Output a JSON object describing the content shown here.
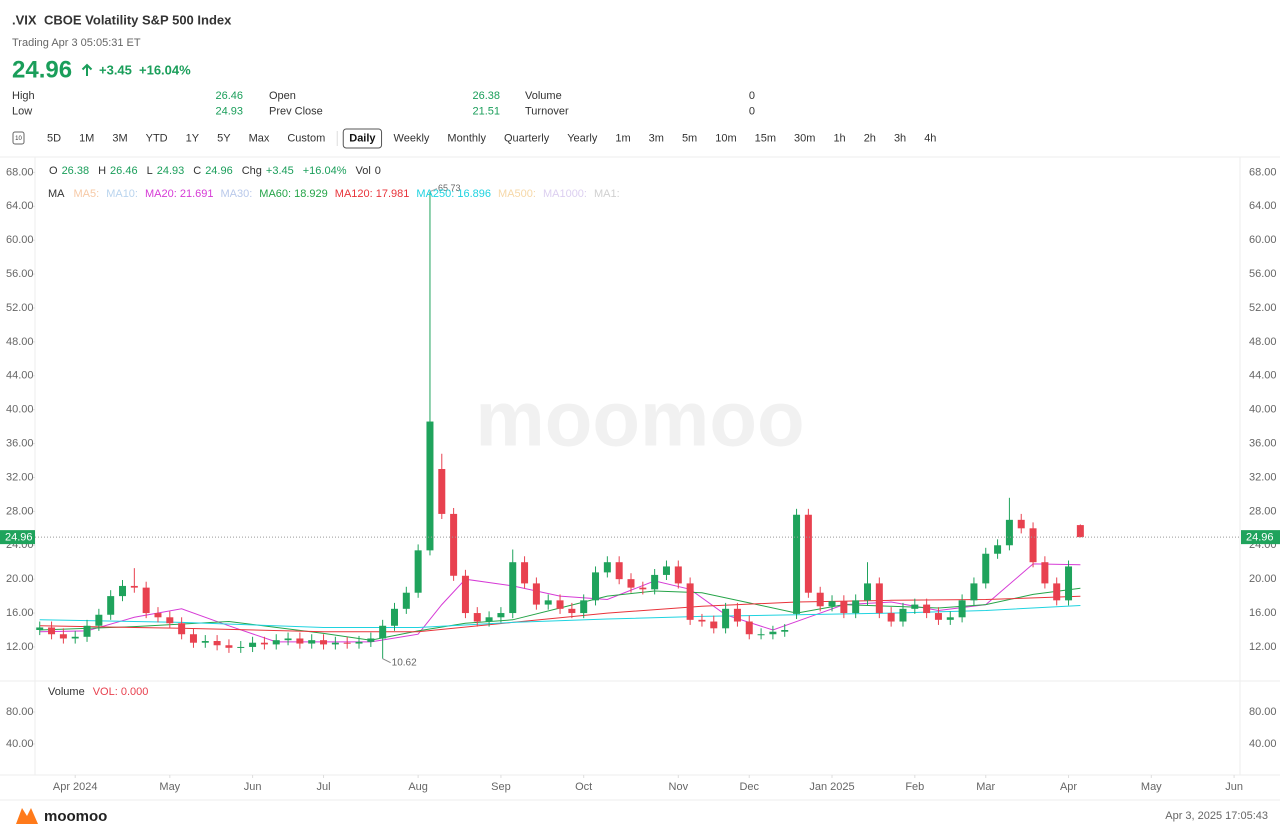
{
  "header": {
    "symbol": ".VIX",
    "name": "CBOE Volatility S&P 500 Index",
    "status": "Trading Apr 3 05:05:31 ET",
    "price": "24.96",
    "change": "+3.45",
    "change_pct": "+16.04%",
    "stats": [
      [
        {
          "label": "High",
          "value": "26.46"
        },
        {
          "label": "Low",
          "value": "24.93"
        }
      ],
      [
        {
          "label": "Open",
          "value": "26.38"
        },
        {
          "label": "Prev Close",
          "value": "21.51"
        }
      ],
      [
        {
          "label": "Volume",
          "value": "0"
        },
        {
          "label": "Turnover",
          "value": "0"
        }
      ]
    ]
  },
  "toolbar": {
    "icon": "10",
    "ranges": [
      "5D",
      "1M",
      "3M",
      "YTD",
      "1Y",
      "5Y",
      "Max",
      "Custom"
    ],
    "periods": [
      "Daily",
      "Weekly",
      "Monthly",
      "Quarterly",
      "Yearly",
      "1m",
      "3m",
      "5m",
      "10m",
      "15m",
      "30m",
      "1h",
      "2h",
      "3h",
      "4h"
    ],
    "active_period": 0
  },
  "chart_data": {
    "type": "candlestick",
    "watermark": "moomoo",
    "info": [
      {
        "label": "O",
        "value": "26.38"
      },
      {
        "label": "H",
        "value": "26.46"
      },
      {
        "label": "L",
        "value": "24.93"
      },
      {
        "label": "C",
        "value": "24.96"
      },
      {
        "label": "Chg",
        "value": "+3.45"
      },
      {
        "value": "+16.04%"
      },
      {
        "label": "Vol",
        "value": "0"
      }
    ],
    "ma_title": "MA",
    "ma_legend": [
      {
        "text": "MA5:",
        "color": "#f6c9a6"
      },
      {
        "text": "MA10:",
        "color": "#b9d4ee"
      },
      {
        "text": "MA20: 21.691",
        "color": "#d63bd6"
      },
      {
        "text": "MA30:",
        "color": "#b8c8ea"
      },
      {
        "text": "MA60: 18.929",
        "color": "#25a448"
      },
      {
        "text": "MA120: 17.981",
        "color": "#e8333a"
      },
      {
        "text": "MA250: 16.896",
        "color": "#1fd3e0"
      },
      {
        "text": "MA500:",
        "color": "#f6d8a8"
      },
      {
        "text": "MA1000:",
        "color": "#dccff0"
      },
      {
        "text": "MA1:",
        "color": "#d0d0d0"
      }
    ],
    "up_color": "#1fa35c",
    "down_color": "#e8414f",
    "candles": {
      "open": [
        14.0,
        14.3,
        13.5,
        13.0,
        13.2,
        14.5,
        15.8,
        18.0,
        19.2,
        19.0,
        16.0,
        15.5,
        14.8,
        13.5,
        12.5,
        12.7,
        12.2,
        11.9,
        12.0,
        12.5,
        12.3,
        12.8,
        13.0,
        12.4,
        12.8,
        12.3,
        12.5,
        12.4,
        12.6,
        13.0,
        14.5,
        16.5,
        18.4,
        23.4,
        33.0,
        27.7,
        20.4,
        16.0,
        15.0,
        15.5,
        16.0,
        22.0,
        19.5,
        17.0,
        17.5,
        16.5,
        16.0,
        17.5,
        20.8,
        22.0,
        20.0,
        19.0,
        18.8,
        20.5,
        21.5,
        19.5,
        15.2,
        15.0,
        14.2,
        16.5,
        15.0,
        13.5,
        13.5,
        13.8,
        15.9,
        27.6,
        18.4,
        16.8,
        17.4,
        16.0,
        17.5,
        19.5,
        16.0,
        15.0,
        16.5,
        17.0,
        16.0,
        15.2,
        15.5,
        17.5,
        19.5,
        23.0,
        24.0,
        27.0,
        26.0,
        22.0,
        19.5,
        17.5,
        26.38
      ],
      "high": [
        15.0,
        15.0,
        14.2,
        13.9,
        15.2,
        16.5,
        18.7,
        19.9,
        21.3,
        19.7,
        16.7,
        16.2,
        15.5,
        14.2,
        13.4,
        13.4,
        12.9,
        12.7,
        13.2,
        13.2,
        13.5,
        13.7,
        13.7,
        13.5,
        13.5,
        13.2,
        13.2,
        13.3,
        13.7,
        15.2,
        17.2,
        19.1,
        24.1,
        65.73,
        34.8,
        28.4,
        21.1,
        16.7,
        16.2,
        16.7,
        23.5,
        22.7,
        20.2,
        18.2,
        18.2,
        17.2,
        18.2,
        21.5,
        22.7,
        22.7,
        20.7,
        19.7,
        21.2,
        22.2,
        22.2,
        20.2,
        15.9,
        15.7,
        17.2,
        17.2,
        15.7,
        14.2,
        14.5,
        14.7,
        28.3,
        28.3,
        19.1,
        18.1,
        18.1,
        18.2,
        22.0,
        20.2,
        16.7,
        17.2,
        17.7,
        17.7,
        16.7,
        16.2,
        18.2,
        20.2,
        23.7,
        24.7,
        29.6,
        27.7,
        26.7,
        22.7,
        20.2,
        22.2,
        26.46
      ],
      "low": [
        13.4,
        12.9,
        12.4,
        12.4,
        12.6,
        13.9,
        15.2,
        17.4,
        18.4,
        15.4,
        14.9,
        14.2,
        12.9,
        11.9,
        11.9,
        11.6,
        11.3,
        11.3,
        11.4,
        11.7,
        11.7,
        12.2,
        11.8,
        11.8,
        11.7,
        11.7,
        11.8,
        11.8,
        12.0,
        10.62,
        13.9,
        15.9,
        17.8,
        22.8,
        27.1,
        19.8,
        15.4,
        14.4,
        14.4,
        14.9,
        15.4,
        18.9,
        16.4,
        16.4,
        15.9,
        15.4,
        15.4,
        16.9,
        20.2,
        19.4,
        18.4,
        18.2,
        18.2,
        19.9,
        18.9,
        14.6,
        14.4,
        13.6,
        13.6,
        14.4,
        12.9,
        12.9,
        12.9,
        13.2,
        15.3,
        17.8,
        16.2,
        16.2,
        15.4,
        15.4,
        16.9,
        15.4,
        14.4,
        14.4,
        15.9,
        15.4,
        14.6,
        14.6,
        14.9,
        16.9,
        18.9,
        22.4,
        23.4,
        25.4,
        21.4,
        18.9,
        16.9,
        16.9,
        24.93
      ],
      "close": [
        14.3,
        13.5,
        13.0,
        13.2,
        14.5,
        15.8,
        18.0,
        19.2,
        19.0,
        16.0,
        15.5,
        14.8,
        13.5,
        12.5,
        12.7,
        12.2,
        11.9,
        12.0,
        12.5,
        12.3,
        12.8,
        13.0,
        12.4,
        12.8,
        12.3,
        12.5,
        12.4,
        12.6,
        13.0,
        14.5,
        16.5,
        18.4,
        23.4,
        38.6,
        27.7,
        20.4,
        16.0,
        15.0,
        15.5,
        16.0,
        22.0,
        19.5,
        17.0,
        17.5,
        16.5,
        16.0,
        17.5,
        20.8,
        22.0,
        20.0,
        19.0,
        18.8,
        20.5,
        21.5,
        19.5,
        15.2,
        15.0,
        14.2,
        16.5,
        15.0,
        13.5,
        13.5,
        13.8,
        14.0,
        27.6,
        18.4,
        16.8,
        17.4,
        16.0,
        17.5,
        19.5,
        16.0,
        15.0,
        16.5,
        17.0,
        16.0,
        15.2,
        15.5,
        17.5,
        19.5,
        23.0,
        24.0,
        27.0,
        26.0,
        22.0,
        19.5,
        17.5,
        21.5,
        24.96
      ]
    },
    "ma_lines": [
      {
        "color": "#d63bd6",
        "x": [
          0,
          4,
          8,
          12,
          16,
          20,
          24,
          28,
          32,
          34,
          36,
          40,
          44,
          48,
          52,
          55,
          58,
          62,
          65,
          68,
          72,
          76,
          80,
          84,
          88
        ],
        "values": [
          13.8,
          13.9,
          15.5,
          16.5,
          14.5,
          12.6,
          12.6,
          12.6,
          13.5,
          17.0,
          20.0,
          19.2,
          18.0,
          17.6,
          19.8,
          18.8,
          15.8,
          14.0,
          15.5,
          17.0,
          17.3,
          16.3,
          17.0,
          21.8,
          21.691
        ]
      },
      {
        "color": "#25a448",
        "x": [
          0,
          8,
          16,
          24,
          28,
          32,
          36,
          40,
          44,
          48,
          52,
          56,
          60,
          64,
          68,
          72,
          76,
          80,
          84,
          88
        ],
        "values": [
          14.0,
          14.4,
          15.0,
          13.6,
          12.8,
          13.9,
          14.8,
          15.2,
          16.6,
          18.0,
          18.6,
          18.4,
          17.2,
          16.0,
          17.0,
          16.8,
          16.6,
          17.0,
          18.2,
          18.929
        ]
      },
      {
        "color": "#e8333a",
        "x": [
          0,
          12,
          24,
          32,
          40,
          48,
          56,
          64,
          72,
          80,
          88
        ],
        "values": [
          14.5,
          14.2,
          13.8,
          13.8,
          14.9,
          16.0,
          16.8,
          17.3,
          17.5,
          17.6,
          17.981
        ]
      },
      {
        "color": "#1fd3e0",
        "x": [
          0,
          12,
          24,
          32,
          40,
          48,
          56,
          64,
          72,
          80,
          88
        ],
        "values": [
          15.2,
          14.9,
          14.3,
          14.3,
          14.9,
          15.3,
          15.6,
          15.8,
          16.0,
          16.3,
          16.896
        ]
      }
    ],
    "last_price": {
      "value": 24.96,
      "label": "24.96"
    },
    "ylim": [
      8.1,
      69.7
    ],
    "yticks": [
      {
        "value": 12,
        "label": "12.00"
      },
      {
        "value": 16,
        "label": "16.00"
      },
      {
        "value": 20,
        "label": "20.00"
      },
      {
        "value": 24,
        "label": "24.00"
      },
      {
        "value": 28,
        "label": "28.00"
      },
      {
        "value": 32,
        "label": "32.00"
      },
      {
        "value": 36,
        "label": "36.00"
      },
      {
        "value": 40,
        "label": "40.00"
      },
      {
        "value": 44,
        "label": "44.00"
      },
      {
        "value": 48,
        "label": "48.00"
      },
      {
        "value": 52,
        "label": "52.00"
      },
      {
        "value": 56,
        "label": "56.00"
      },
      {
        "value": 60,
        "label": "60.00"
      },
      {
        "value": 64,
        "label": "64.00"
      },
      {
        "value": 68,
        "label": "68.00"
      }
    ],
    "xlim": [
      -0.4,
      101.5
    ],
    "xticks": [
      {
        "value": 3,
        "label": "Apr 2024"
      },
      {
        "value": 11,
        "label": "May"
      },
      {
        "value": 18,
        "label": "Jun"
      },
      {
        "value": 24,
        "label": "Jul"
      },
      {
        "value": 32,
        "label": "Aug"
      },
      {
        "value": 39,
        "label": "Sep"
      },
      {
        "value": 46,
        "label": "Oct"
      },
      {
        "value": 54,
        "label": "Nov"
      },
      {
        "value": 60,
        "label": "Dec"
      },
      {
        "value": 67,
        "label": "Jan 2025"
      },
      {
        "value": 74,
        "label": "Feb"
      },
      {
        "value": 80,
        "label": "Mar"
      },
      {
        "value": 87,
        "label": "Apr"
      },
      {
        "value": 94,
        "label": "May"
      },
      {
        "value": 101,
        "label": "Jun"
      }
    ],
    "volume": {
      "title": "Volume",
      "label": "VOL: 0.000",
      "ylim": [
        1.2,
        117.5
      ],
      "yticks": [
        {
          "value": 40,
          "label": "40.00"
        },
        {
          "value": 80,
          "label": "80.00"
        }
      ]
    }
  },
  "footer": {
    "brand": "moomoo",
    "timestamp": "Apr 3, 2025 17:05:43"
  }
}
